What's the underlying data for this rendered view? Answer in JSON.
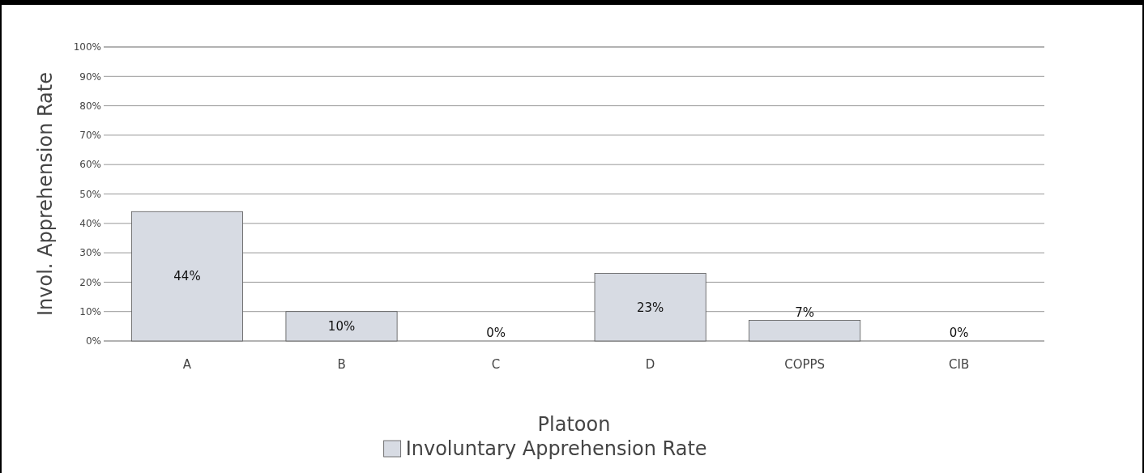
{
  "chart_data": {
    "type": "bar",
    "xlabel": "Platoon",
    "ylabel": "Invol. Apprehension Rate",
    "categories": [
      "A",
      "B",
      "C",
      "D",
      "COPPS",
      "CIB"
    ],
    "series": [
      {
        "name": "Involuntary Apprehension Rate",
        "color": "#d7dbe3",
        "values": [
          44,
          10,
          0,
          23,
          7,
          0
        ]
      }
    ],
    "value_labels": [
      "44%",
      "10%",
      "0%",
      "23%",
      "7%",
      "0%"
    ],
    "ylim": [
      0,
      100
    ],
    "yticks": [
      {
        "value": 0,
        "label": "0%"
      },
      {
        "value": 10,
        "label": "10%"
      },
      {
        "value": 20,
        "label": "20%"
      },
      {
        "value": 30,
        "label": "30%"
      },
      {
        "value": 40,
        "label": "40%"
      },
      {
        "value": 50,
        "label": "50%"
      },
      {
        "value": 60,
        "label": "60%"
      },
      {
        "value": 70,
        "label": "70%"
      },
      {
        "value": 80,
        "label": "80%"
      },
      {
        "value": 90,
        "label": "90%"
      },
      {
        "value": 100,
        "label": "100%"
      }
    ],
    "grid": "y",
    "legend": "bottom"
  }
}
